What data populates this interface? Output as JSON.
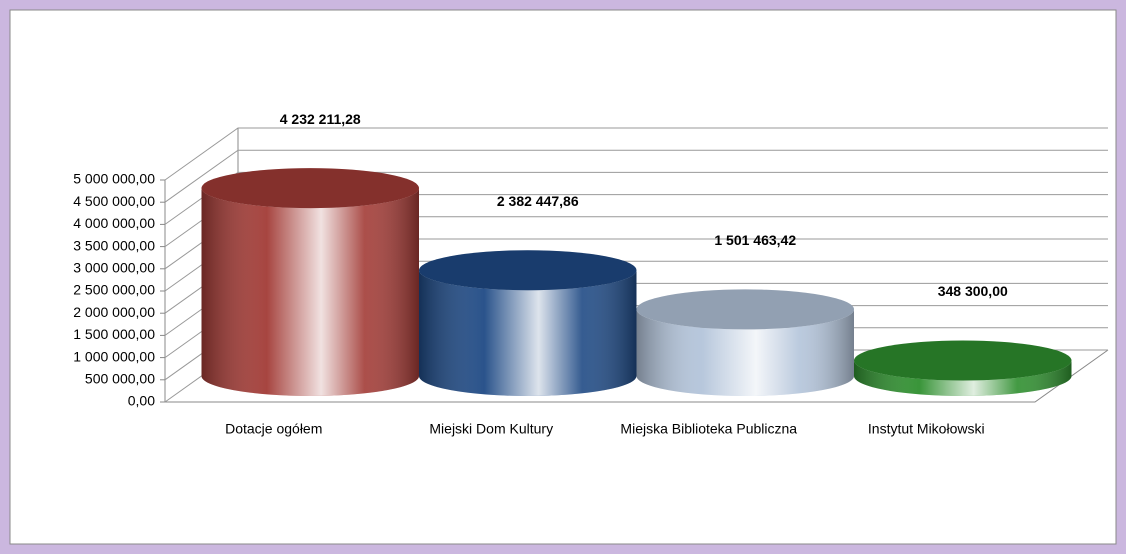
{
  "chart_data": {
    "type": "bar3d",
    "categories": [
      "Dotacje ogółem",
      "Miejski Dom Kultury",
      "Miejska Biblioteka Publiczna",
      "Instytut Mikołowski"
    ],
    "values": [
      4232211.28,
      2382447.86,
      1501463.42,
      348300.0
    ],
    "value_labels": [
      "4 232 211,28",
      "2 382 447,86",
      "1 501 463,42",
      "348 300,00"
    ],
    "colors": [
      "#a23b36",
      "#1f4a85",
      "#b3c4da",
      "#2f8f2f"
    ],
    "ylim": [
      0,
      5000000
    ],
    "yticks": [
      {
        "value": 0,
        "label": "0,00"
      },
      {
        "value": 500000,
        "label": "500 000,00"
      },
      {
        "value": 1000000,
        "label": "1 000 000,00"
      },
      {
        "value": 1500000,
        "label": "1 500 000,00"
      },
      {
        "value": 2000000,
        "label": "2 000 000,00"
      },
      {
        "value": 2500000,
        "label": "2 500 000,00"
      },
      {
        "value": 3000000,
        "label": "3 000 000,00"
      },
      {
        "value": 3500000,
        "label": "3 500 000,00"
      },
      {
        "value": 4000000,
        "label": "4 000 000,00"
      },
      {
        "value": 4500000,
        "label": "4 500 000,00"
      },
      {
        "value": 5000000,
        "label": "5 000 000,00"
      }
    ],
    "grid": true
  }
}
